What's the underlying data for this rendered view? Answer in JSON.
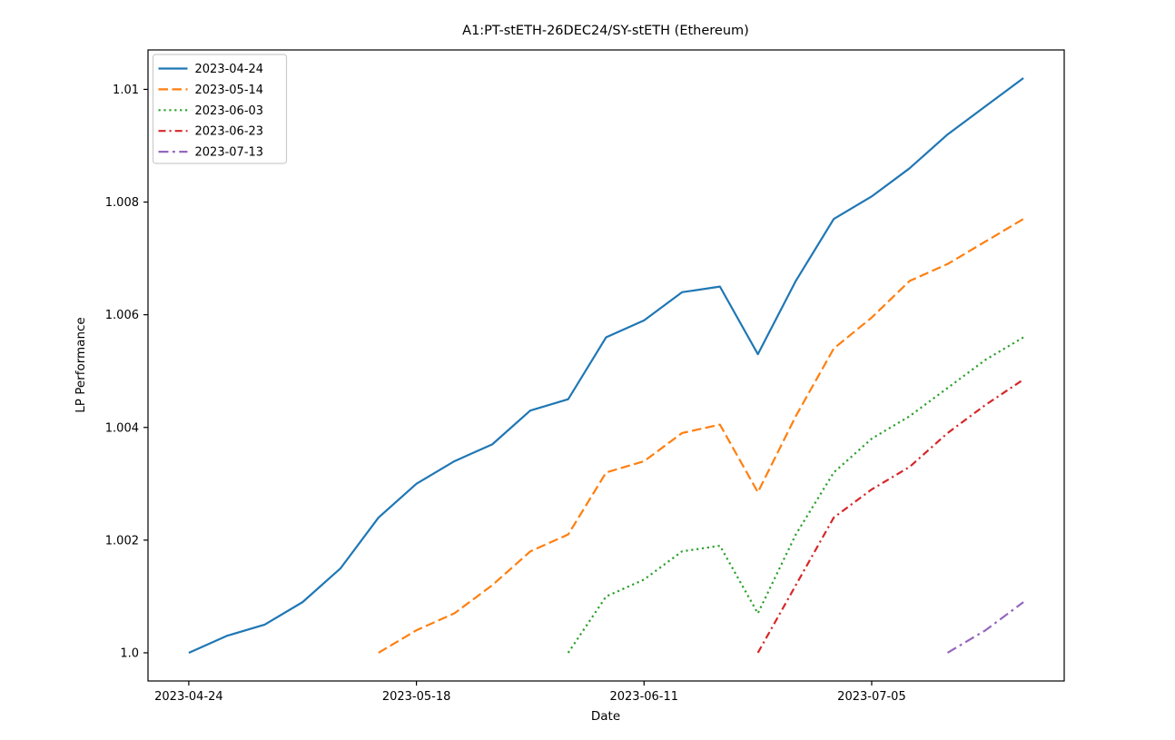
{
  "chart_data": {
    "type": "line",
    "title": "A1:PT-stETH-26DEC24/SY-stETH (Ethereum)",
    "xlabel": "Date",
    "ylabel": "LP Performance",
    "legend_position": "upper left",
    "grid": false,
    "base_date": "2023-04-24",
    "x_domain_days": [
      -4.3,
      92.3
    ],
    "y_domain": [
      0.9995,
      1.0107
    ],
    "x_ticks": [
      "2023-04-24",
      "2023-05-18",
      "2023-06-11",
      "2023-07-05"
    ],
    "y_ticks": [
      {
        "value": 1.0,
        "label": "1.0"
      },
      {
        "value": 1.002,
        "label": "1.002"
      },
      {
        "value": 1.004,
        "label": "1.004"
      },
      {
        "value": 1.006,
        "label": "1.006"
      },
      {
        "value": 1.008,
        "label": "1.008"
      },
      {
        "value": 1.01,
        "label": "1.01"
      }
    ],
    "series": [
      {
        "name": "2023-04-24",
        "color": "#1f77b4",
        "style": "solid",
        "points": [
          [
            "2023-04-24",
            1.0
          ],
          [
            "2023-04-28",
            1.0003
          ],
          [
            "2023-05-02",
            1.0005
          ],
          [
            "2023-05-06",
            1.0009
          ],
          [
            "2023-05-10",
            1.0015
          ],
          [
            "2023-05-14",
            1.0024
          ],
          [
            "2023-05-18",
            1.003
          ],
          [
            "2023-05-22",
            1.0034
          ],
          [
            "2023-05-26",
            1.0037
          ],
          [
            "2023-05-30",
            1.0043
          ],
          [
            "2023-06-03",
            1.0045
          ],
          [
            "2023-06-07",
            1.0056
          ],
          [
            "2023-06-11",
            1.0059
          ],
          [
            "2023-06-15",
            1.0064
          ],
          [
            "2023-06-19",
            1.0065
          ],
          [
            "2023-06-23",
            1.0053
          ],
          [
            "2023-06-27",
            1.0066
          ],
          [
            "2023-07-01",
            1.0077
          ],
          [
            "2023-07-05",
            1.0081
          ],
          [
            "2023-07-09",
            1.0086
          ],
          [
            "2023-07-13",
            1.0092
          ],
          [
            "2023-07-17",
            1.0097
          ],
          [
            "2023-07-21",
            1.0102
          ]
        ]
      },
      {
        "name": "2023-05-14",
        "color": "#ff7f0e",
        "style": "dashed",
        "points": [
          [
            "2023-05-14",
            1.0
          ],
          [
            "2023-05-18",
            1.0004
          ],
          [
            "2023-05-22",
            1.0007
          ],
          [
            "2023-05-26",
            1.0012
          ],
          [
            "2023-05-30",
            1.0018
          ],
          [
            "2023-06-03",
            1.0021
          ],
          [
            "2023-06-07",
            1.0032
          ],
          [
            "2023-06-11",
            1.0034
          ],
          [
            "2023-06-15",
            1.0039
          ],
          [
            "2023-06-19",
            1.00405
          ],
          [
            "2023-06-23",
            1.00285
          ],
          [
            "2023-06-27",
            1.0042
          ],
          [
            "2023-07-01",
            1.0054
          ],
          [
            "2023-07-05",
            1.00595
          ],
          [
            "2023-07-09",
            1.0066
          ],
          [
            "2023-07-13",
            1.0069
          ],
          [
            "2023-07-17",
            1.0073
          ],
          [
            "2023-07-21",
            1.0077
          ]
        ]
      },
      {
        "name": "2023-06-03",
        "color": "#2ca02c",
        "style": "dotted",
        "points": [
          [
            "2023-06-03",
            1.0
          ],
          [
            "2023-06-07",
            1.001
          ],
          [
            "2023-06-11",
            1.0013
          ],
          [
            "2023-06-15",
            1.0018
          ],
          [
            "2023-06-19",
            1.0019
          ],
          [
            "2023-06-23",
            1.0007
          ],
          [
            "2023-06-27",
            1.0021
          ],
          [
            "2023-07-01",
            1.0032
          ],
          [
            "2023-07-05",
            1.0038
          ],
          [
            "2023-07-09",
            1.0042
          ],
          [
            "2023-07-13",
            1.0047
          ],
          [
            "2023-07-17",
            1.0052
          ],
          [
            "2023-07-21",
            1.0056
          ]
        ]
      },
      {
        "name": "2023-06-23",
        "color": "#d62728",
        "style": "dashdot",
        "points": [
          [
            "2023-06-23",
            1.0
          ],
          [
            "2023-06-27",
            1.0012
          ],
          [
            "2023-07-01",
            1.0024
          ],
          [
            "2023-07-05",
            1.0029
          ],
          [
            "2023-07-09",
            1.0033
          ],
          [
            "2023-07-13",
            1.0039
          ],
          [
            "2023-07-17",
            1.0044
          ],
          [
            "2023-07-21",
            1.00485
          ]
        ]
      },
      {
        "name": "2023-07-13",
        "color": "#9467bd",
        "style": "dashdot-long",
        "points": [
          [
            "2023-07-13",
            1.0
          ],
          [
            "2023-07-17",
            1.0004
          ],
          [
            "2023-07-21",
            1.0009
          ]
        ]
      }
    ]
  }
}
